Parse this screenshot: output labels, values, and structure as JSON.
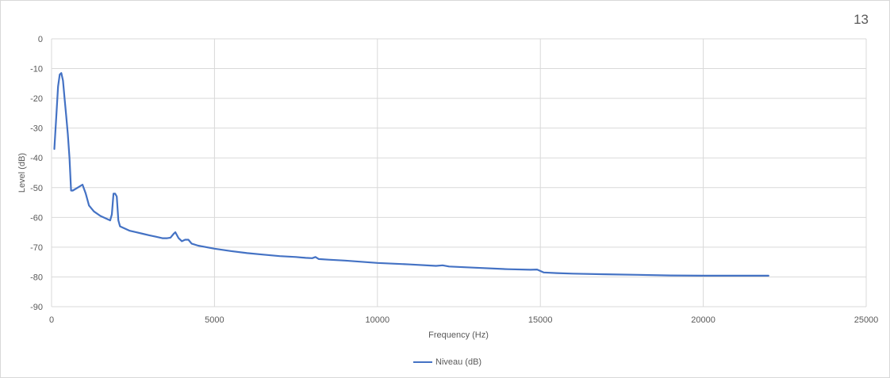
{
  "page": {
    "number": "13"
  },
  "chart_data": {
    "type": "line",
    "title": "",
    "xlabel": "Frequency (Hz)",
    "ylabel": "Level (dB)",
    "xlim": [
      0,
      25000
    ],
    "ylim": [
      -90,
      0
    ],
    "x_ticks": [
      "0",
      "5000",
      "10000",
      "15000",
      "20000",
      "25000"
    ],
    "y_ticks": [
      "0",
      "-10",
      "-20",
      "-30",
      "-40",
      "-50",
      "-60",
      "-70",
      "-80",
      "-90"
    ],
    "grid": true,
    "legend_position": "bottom",
    "color": "#4472c4",
    "series": [
      {
        "name": "Niveau (dB)",
        "x": [
          86,
          150,
          200,
          250,
          300,
          350,
          400,
          450,
          500,
          550,
          600,
          650,
          800,
          950,
          1050,
          1150,
          1300,
          1500,
          1700,
          1800,
          1850,
          1900,
          1950,
          2000,
          2050,
          2100,
          2200,
          2400,
          2600,
          2800,
          3000,
          3200,
          3400,
          3550,
          3650,
          3750,
          3800,
          3900,
          4000,
          4100,
          4200,
          4300,
          4500,
          5000,
          5500,
          6000,
          6500,
          7000,
          7500,
          7800,
          8000,
          8100,
          8200,
          8500,
          9000,
          10000,
          11000,
          11800,
          12000,
          12200,
          13000,
          14000,
          14700,
          14900,
          15100,
          15500,
          16000,
          17000,
          18000,
          19000,
          20000,
          21000,
          22000
        ],
        "y": [
          -37,
          -25,
          -16,
          -12,
          -11.5,
          -14,
          -20,
          -26,
          -32,
          -40,
          -51,
          -51,
          -50,
          -49,
          -52,
          -56,
          -58,
          -59.5,
          -60.5,
          -61,
          -59,
          -52,
          -52,
          -53,
          -61,
          -63,
          -63.5,
          -64.5,
          -65,
          -65.5,
          -66,
          -66.5,
          -67,
          -67,
          -66.8,
          -65.5,
          -65,
          -67,
          -68,
          -67.5,
          -67.5,
          -68.8,
          -69.5,
          -70.5,
          -71.3,
          -72,
          -72.5,
          -73,
          -73.3,
          -73.6,
          -73.7,
          -73.3,
          -74,
          -74.2,
          -74.5,
          -75.3,
          -75.8,
          -76.3,
          -76.1,
          -76.5,
          -76.9,
          -77.4,
          -77.6,
          -77.5,
          -78.5,
          -78.7,
          -78.9,
          -79.1,
          -79.3,
          -79.5,
          -79.6,
          -79.6,
          -79.6
        ]
      }
    ]
  }
}
